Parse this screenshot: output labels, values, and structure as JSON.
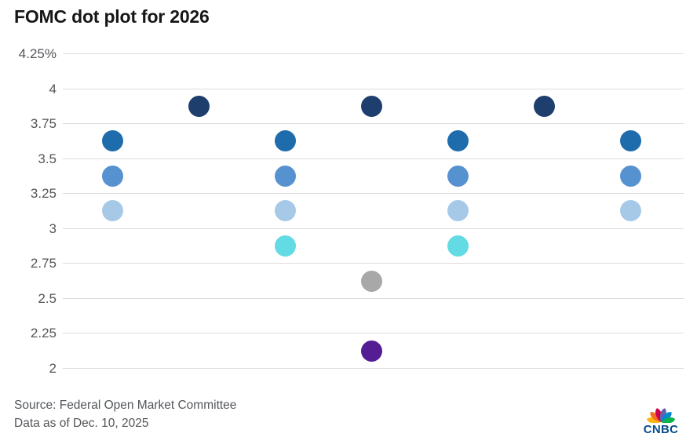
{
  "page": {
    "title": "FOMC dot plot for 2026"
  },
  "footer": {
    "source": "Source: Federal Open Market Committee",
    "date": "Data as of Dec. 10, 2025"
  },
  "logo": {
    "wordmark": "CNBC",
    "wordmark_color": "#054b8e",
    "feather_colors": [
      "#FCB711",
      "#F37021",
      "#CC004C",
      "#6460AA",
      "#0089D0",
      "#0DB14B"
    ]
  },
  "chart_data": {
    "type": "scatter",
    "title": "FOMC dot plot for 2026",
    "xlabel": "",
    "ylabel": "",
    "ylim": [
      2,
      4.25
    ],
    "grid": true,
    "legend": false,
    "y_ticks": [
      "4.25%",
      "4",
      "3.75",
      "3.5",
      "3.25",
      "3",
      "2.75",
      "2.5",
      "2.25",
      "2"
    ],
    "y_tick_values": [
      4.25,
      4,
      3.75,
      3.5,
      3.25,
      3,
      2.75,
      2.5,
      2.25,
      2
    ],
    "dot_rows": [
      {
        "rate": 3.875,
        "count": 3,
        "color": "#1e3e6d"
      },
      {
        "rate": 3.625,
        "count": 4,
        "color": "#1f6cad"
      },
      {
        "rate": 3.375,
        "count": 4,
        "color": "#5792d0"
      },
      {
        "rate": 3.125,
        "count": 4,
        "color": "#a7c9e8"
      },
      {
        "rate": 2.875,
        "count": 2,
        "color": "#63dbe4"
      },
      {
        "rate": 2.625,
        "count": 1,
        "color": "#a8a8a8"
      },
      {
        "rate": 2.125,
        "count": 1,
        "color": "#551d94"
      }
    ],
    "total_dots": 19
  }
}
